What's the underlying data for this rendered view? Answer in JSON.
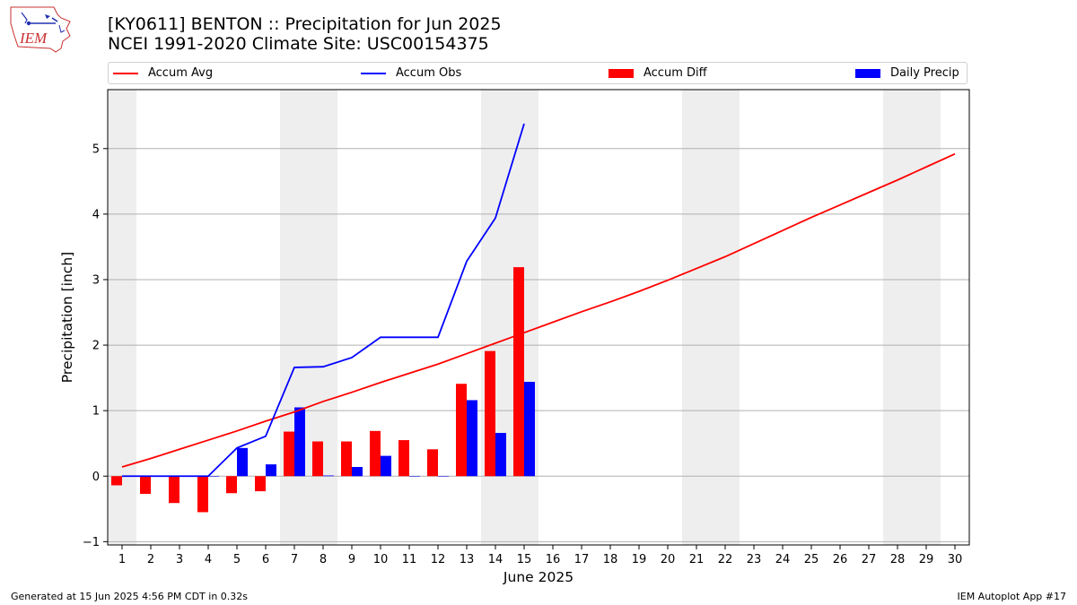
{
  "header": {
    "title_line1": "[KY0611] BENTON :: Precipitation for Jun 2025",
    "title_line2": "NCEI 1991-2020 Climate Site: USC00154375",
    "logo_text": "IEM"
  },
  "footer": {
    "generated": "Generated at 15 Jun 2025 4:56 PM CDT in 0.32s",
    "app": "IEM Autoplot App #17"
  },
  "colors": {
    "avg": "#ff0000",
    "obs": "#0000ff",
    "diff": "#ff0000",
    "daily": "#0000ff",
    "weekend_shade": "#eeeeee",
    "grid": "#b0b0b0"
  },
  "chart_data": {
    "type": "bar",
    "xlabel": "June 2025",
    "ylabel": "Precipitation [inch]",
    "xlim": [
      0.5,
      30.5
    ],
    "ylim": [
      -1.05,
      5.9
    ],
    "yticks": [
      -1,
      0,
      1,
      2,
      3,
      4,
      5
    ],
    "xticks": [
      1,
      2,
      3,
      4,
      5,
      6,
      7,
      8,
      9,
      10,
      11,
      12,
      13,
      14,
      15,
      16,
      17,
      18,
      19,
      20,
      21,
      22,
      23,
      24,
      25,
      26,
      27,
      28,
      29,
      30
    ],
    "grid": "horizontal",
    "legend_placement": "top",
    "weekend_days": [
      1,
      7,
      8,
      14,
      15,
      21,
      22,
      28,
      29
    ],
    "days": [
      1,
      2,
      3,
      4,
      5,
      6,
      7,
      8,
      9,
      10,
      11,
      12,
      13,
      14,
      15
    ],
    "series": [
      {
        "name": "Accum Avg",
        "type": "line",
        "x": [
          1,
          2,
          3,
          4,
          5,
          6,
          7,
          8,
          9,
          10,
          11,
          12,
          13,
          14,
          15,
          16,
          17,
          18,
          19,
          20,
          21,
          22,
          23,
          24,
          25,
          26,
          27,
          28,
          29,
          30
        ],
        "values": [
          0.14,
          0.27,
          0.41,
          0.55,
          0.69,
          0.84,
          0.98,
          1.14,
          1.28,
          1.43,
          1.57,
          1.71,
          1.87,
          2.03,
          2.19,
          2.35,
          2.51,
          2.66,
          2.82,
          2.99,
          3.17,
          3.35,
          3.55,
          3.75,
          3.95,
          4.14,
          4.33,
          4.52,
          4.72,
          4.92
        ]
      },
      {
        "name": "Accum Obs",
        "type": "line",
        "x": [
          1,
          2,
          3,
          4,
          5,
          6,
          7,
          8,
          9,
          10,
          11,
          12,
          13,
          14,
          15
        ],
        "values": [
          0.0,
          0.0,
          0.0,
          0.0,
          0.43,
          0.61,
          1.66,
          1.67,
          1.81,
          2.12,
          2.12,
          2.12,
          3.28,
          3.94,
          5.38
        ]
      },
      {
        "name": "Accum Diff",
        "type": "bar",
        "x": [
          1,
          2,
          3,
          4,
          5,
          6,
          7,
          8,
          9,
          10,
          11,
          12,
          13,
          14,
          15
        ],
        "values": [
          -0.14,
          -0.27,
          -0.41,
          -0.55,
          -0.26,
          -0.23,
          0.68,
          0.53,
          0.53,
          0.69,
          0.55,
          0.41,
          1.41,
          1.91,
          3.19
        ]
      },
      {
        "name": "Daily Precip",
        "type": "bar",
        "x": [
          1,
          2,
          3,
          4,
          5,
          6,
          7,
          8,
          9,
          10,
          11,
          12,
          13,
          14,
          15
        ],
        "values": [
          0.0,
          0.0,
          0.0,
          0.0,
          0.43,
          0.18,
          1.05,
          0.01,
          0.14,
          0.31,
          0.0,
          0.0,
          1.16,
          0.66,
          1.44
        ]
      }
    ]
  }
}
